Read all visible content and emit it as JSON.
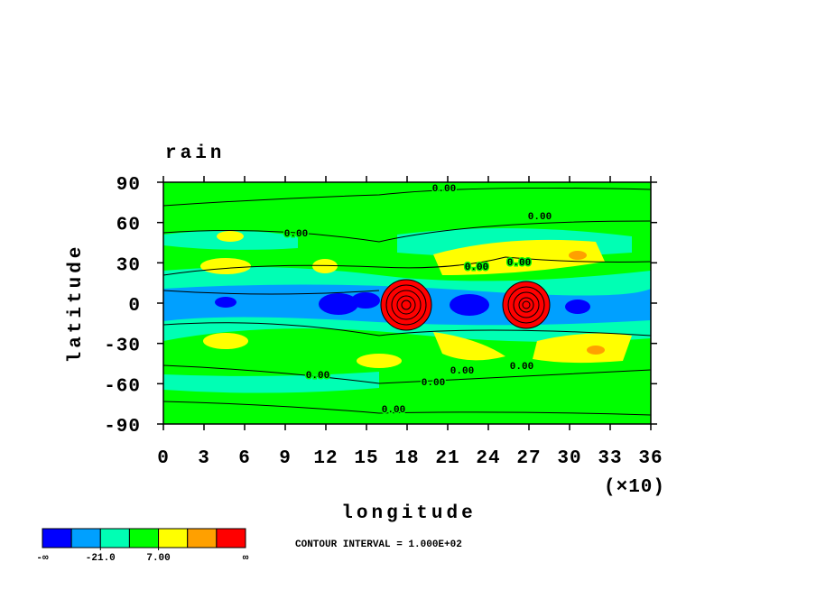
{
  "chart_data": {
    "type": "contour",
    "title": "rain",
    "x_label": "longitude",
    "y_label": "latitude",
    "xlim": [
      0,
      36
    ],
    "xticks": [
      0,
      3,
      6,
      9,
      12,
      15,
      18,
      21,
      24,
      27,
      30,
      33,
      36
    ],
    "x_multiplier": "(×10)",
    "ylim": [
      -90,
      90
    ],
    "yticks": [
      90,
      60,
      30,
      0,
      -30,
      -60,
      -90
    ],
    "colorbar": {
      "colors": [
        "#0000ff",
        "#00a0ff",
        "#00ffb4",
        "#00ff00",
        "#ffff00",
        "#ffa000",
        "#ff0000"
      ],
      "labels": [
        "-∞",
        {
          "value": -21,
          "label": "-21.0"
        },
        {
          "value": 7,
          "label": "7.00"
        },
        "∞"
      ]
    },
    "contour_labels": [
      "0.00",
      "0.00",
      "0.00",
      "0.00",
      "0.00",
      "0.00",
      "0.00",
      "0.00",
      "0.00",
      "0.00"
    ],
    "contour_interval": "CONTOUR INTERVAL = 1.000E+02"
  }
}
